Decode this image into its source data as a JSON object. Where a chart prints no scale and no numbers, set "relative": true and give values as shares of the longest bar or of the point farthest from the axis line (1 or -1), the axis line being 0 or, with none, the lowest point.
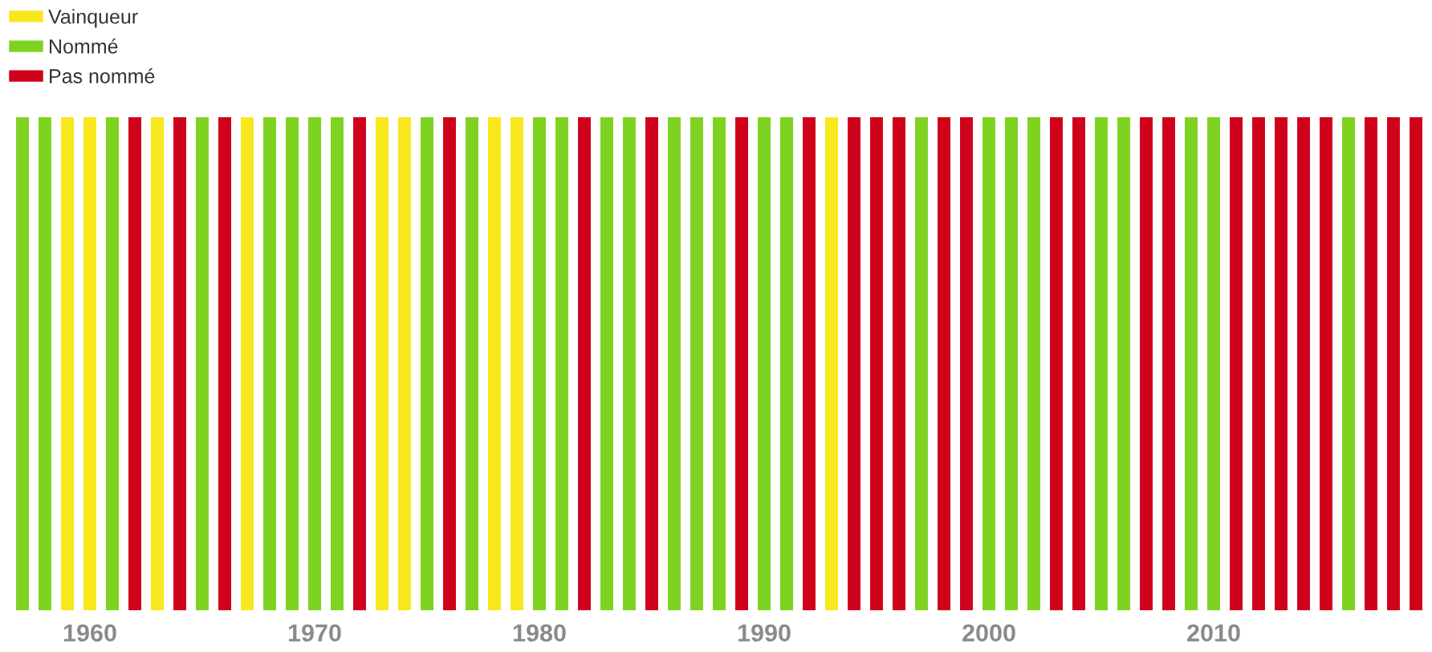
{
  "chart_data": {
    "type": "bar",
    "relative": true,
    "stacked": true,
    "legend": "top left",
    "x": [
      1957,
      1958,
      1959,
      1960,
      1961,
      1962,
      1963,
      1964,
      1965,
      1966,
      1967,
      1968,
      1969,
      1970,
      1971,
      1972,
      1973,
      1974,
      1975,
      1976,
      1977,
      1978,
      1979,
      1980,
      1981,
      1982,
      1983,
      1984,
      1985,
      1986,
      1987,
      1988,
      1989,
      1990,
      1991,
      1992,
      1993,
      1994,
      1995,
      1996,
      1997,
      1998,
      1999,
      2000,
      2001,
      2002,
      2003,
      2004,
      2005,
      2006,
      2007,
      2008,
      2009,
      2010,
      2011,
      2012,
      2013,
      2014,
      2015,
      2016,
      2017,
      2018,
      2019
    ],
    "xlim": [
      1956.5,
      2019.5
    ],
    "xticks": [
      1960,
      1970,
      1980,
      1990,
      2000,
      2010
    ],
    "series": [
      {
        "name": "Vainqueur",
        "color": "#f8e71c",
        "values": [
          null,
          null,
          1,
          1,
          null,
          null,
          1,
          null,
          null,
          null,
          1,
          null,
          null,
          null,
          null,
          null,
          1,
          1,
          null,
          null,
          null,
          1,
          1,
          null,
          null,
          null,
          null,
          null,
          null,
          null,
          null,
          null,
          null,
          null,
          null,
          null,
          1,
          null,
          null,
          null,
          null,
          null,
          null,
          null,
          null,
          null,
          null,
          null,
          null,
          null,
          null,
          null,
          null,
          null,
          null,
          null,
          null,
          null,
          null,
          null,
          null,
          null,
          null
        ]
      },
      {
        "name": "Nommé",
        "color": "#7ed321",
        "values": [
          1,
          1,
          null,
          null,
          1,
          null,
          null,
          null,
          1,
          null,
          null,
          1,
          1,
          1,
          1,
          null,
          null,
          null,
          1,
          null,
          1,
          null,
          null,
          1,
          1,
          null,
          1,
          1,
          null,
          1,
          1,
          1,
          null,
          1,
          1,
          null,
          null,
          null,
          null,
          null,
          1,
          null,
          null,
          1,
          1,
          1,
          null,
          null,
          1,
          1,
          null,
          null,
          1,
          1,
          null,
          null,
          null,
          null,
          null,
          1,
          null,
          null,
          null
        ]
      },
      {
        "name": "Pas nommé",
        "color": "#d0021b",
        "values": [
          null,
          null,
          null,
          null,
          null,
          1,
          null,
          1,
          null,
          1,
          null,
          null,
          null,
          null,
          null,
          1,
          null,
          null,
          null,
          1,
          null,
          null,
          null,
          null,
          null,
          1,
          null,
          null,
          1,
          null,
          null,
          null,
          1,
          null,
          null,
          1,
          null,
          1,
          1,
          1,
          null,
          1,
          1,
          null,
          null,
          null,
          1,
          1,
          null,
          null,
          1,
          1,
          null,
          null,
          1,
          1,
          1,
          1,
          1,
          null,
          1,
          1,
          1
        ]
      }
    ]
  }
}
